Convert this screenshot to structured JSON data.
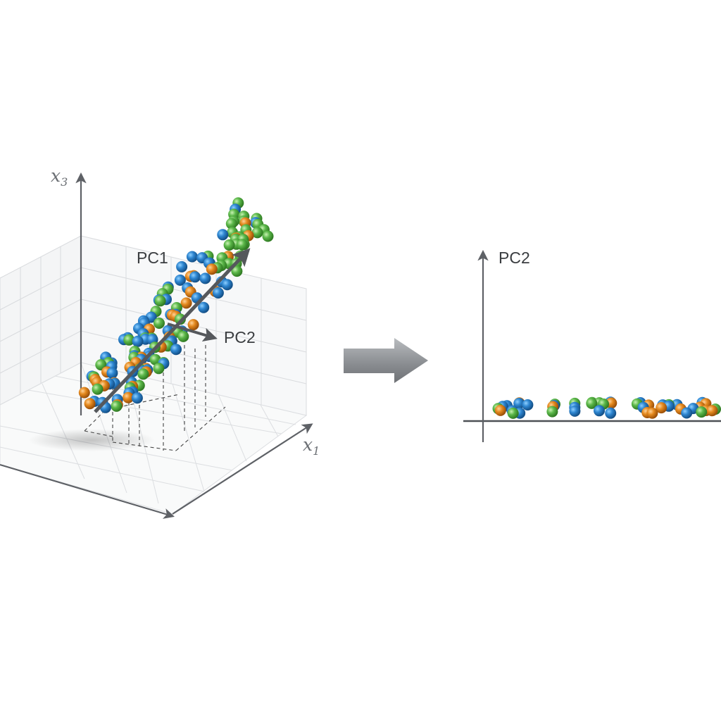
{
  "left_panel": {
    "axis_x3": "x3",
    "axis_x1": "x1",
    "pc1_label": "PC1",
    "pc2_label": "PC2"
  },
  "right_panel": {
    "pc2_label": "PC2"
  },
  "colors": {
    "series_a": "#2e86d1",
    "series_b": "#e58a1f",
    "series_c": "#5cb84a",
    "axis": "#5e6166",
    "arrow_fill": "#8c8f93",
    "grid": "#d8dadd"
  }
}
